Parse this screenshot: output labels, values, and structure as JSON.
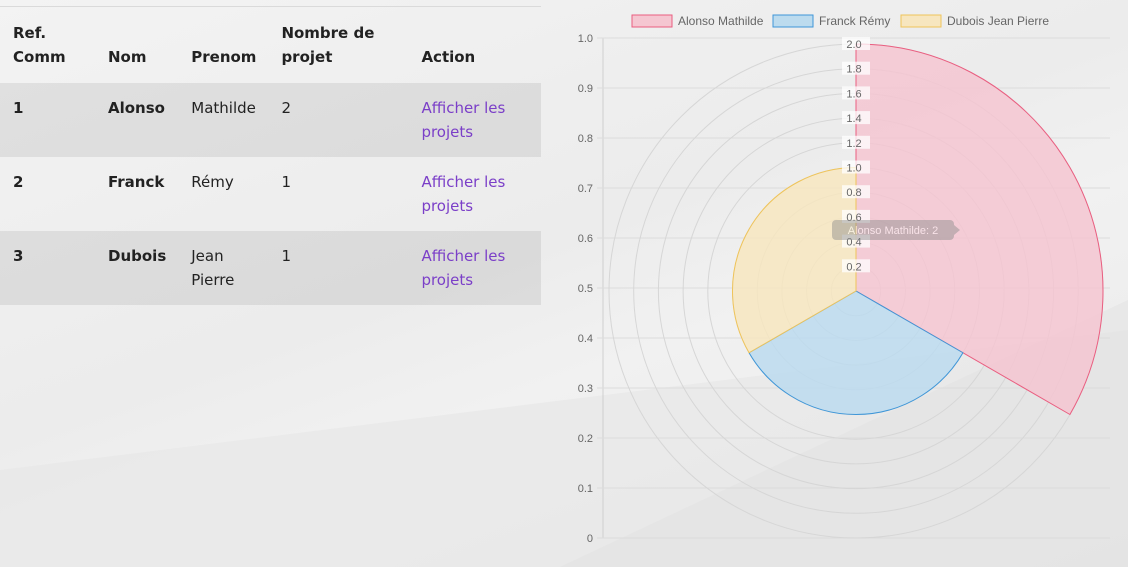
{
  "table": {
    "headers": [
      "Ref.\nComm",
      "Nom",
      "Prenom",
      "Nombre de\nprojet",
      "Action"
    ],
    "rows": [
      {
        "ref": "1",
        "nom": "Alonso",
        "prenom": "Mathilde",
        "count": "2",
        "action": "Afficher les projets"
      },
      {
        "ref": "2",
        "nom": "Franck",
        "prenom": "Rémy",
        "count": "1",
        "action": "Afficher les projets"
      },
      {
        "ref": "3",
        "nom": "Dubois",
        "prenom": "Jean Pierre",
        "count": "1",
        "action": "Afficher les projets"
      }
    ]
  },
  "chart_data": {
    "type": "polarArea",
    "categories": [
      "Alonso Mathilde",
      "Franck Rémy",
      "Dubois Jean Pierre"
    ],
    "values": [
      2,
      1,
      1
    ],
    "radial_ticks": [
      "0.2",
      "0.4",
      "0.6",
      "0.8",
      "1.0",
      "1.2",
      "1.4",
      "1.6",
      "1.8",
      "2.0"
    ],
    "y_ticks": [
      "0",
      "0.1",
      "0.2",
      "0.3",
      "0.4",
      "0.5",
      "0.6",
      "0.7",
      "0.8",
      "0.9",
      "1.0"
    ],
    "radial_range": [
      0,
      2
    ],
    "y_range": [
      0,
      1
    ],
    "legend_position": "top",
    "tooltip": "Alonso Mathilde: 2",
    "colors": {
      "fill": [
        "#f5c6d1",
        "#bcdbee",
        "#f7e6bf"
      ],
      "stroke": [
        "#ea5e80",
        "#3e96d8",
        "#efc45a"
      ]
    }
  }
}
